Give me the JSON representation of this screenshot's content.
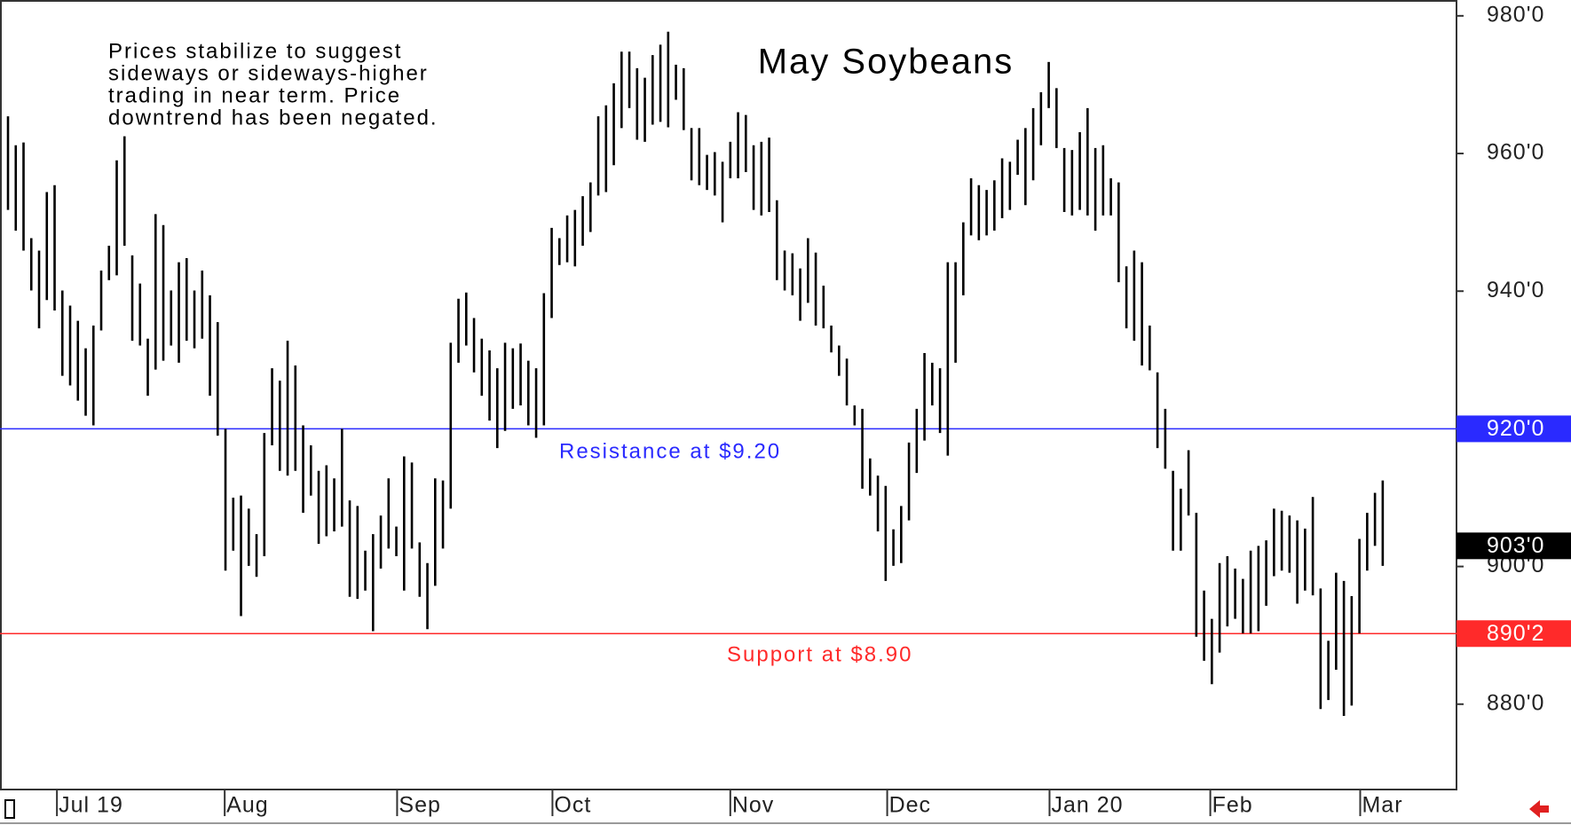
{
  "chart_data": {
    "type": "bar-range",
    "title": "May Soybeans",
    "note_lines": [
      "Prices stabilize to suggest",
      "sideways or sideways-higher",
      "trading in near term. Price",
      "downtrend has been negated."
    ],
    "color": "#000000",
    "xlim": [
      -1.03,
      186.5
    ],
    "xticks": [
      {
        "value": 6.3,
        "label": "Jul 19"
      },
      {
        "value": 27.9,
        "label": "Aug"
      },
      {
        "value": 50.1,
        "label": "Sep"
      },
      {
        "value": 70.1,
        "label": "Oct"
      },
      {
        "value": 93.0,
        "label": "Nov"
      },
      {
        "value": 113.2,
        "label": "Dec"
      },
      {
        "value": 134.1,
        "label": "Jan 20"
      },
      {
        "value": 154.8,
        "label": "Feb"
      },
      {
        "value": 174.1,
        "label": "Mar"
      }
    ],
    "ylim": [
      867.6,
      982.3
    ],
    "yticks": [
      {
        "value": 880,
        "label": "880'0"
      },
      {
        "value": 900,
        "label": "900'0"
      },
      {
        "value": 920,
        "label": "920'0"
      },
      {
        "value": 940,
        "label": "940'0"
      },
      {
        "value": 960,
        "label": "960'0"
      },
      {
        "value": 980,
        "label": "980'0"
      }
    ],
    "levels": [
      {
        "value": 920,
        "label": "Resistance at $9.20",
        "tag": "920'0",
        "color": "#2a2aff"
      },
      {
        "value": 890.25,
        "label": "Support at $8.90",
        "tag": "890'2",
        "color": "#ff2a2a"
      }
    ],
    "last": {
      "value": 903,
      "tag": "903'0",
      "color": "#000000"
    },
    "x": [
      0,
      1,
      2,
      3,
      4,
      5,
      6,
      7,
      8,
      9,
      10,
      11,
      12,
      13,
      14,
      15,
      16,
      17,
      18,
      19,
      20,
      21,
      22,
      23,
      24,
      25,
      26,
      27,
      28,
      29,
      30,
      31,
      32,
      33,
      34,
      35,
      36,
      37,
      38,
      39,
      40,
      41,
      42,
      43,
      44,
      45,
      46,
      47,
      48,
      49,
      50,
      51,
      52,
      53,
      54,
      55,
      56,
      57,
      58,
      59,
      60,
      61,
      62,
      63,
      64,
      65,
      66,
      67,
      68,
      69,
      70,
      71,
      72,
      73,
      74,
      75,
      76,
      77,
      78,
      79,
      80,
      81,
      82,
      83,
      84,
      85,
      86,
      87,
      88,
      89,
      90,
      91,
      92,
      93,
      94,
      95,
      96,
      97,
      98,
      99,
      100,
      101,
      102,
      103,
      104,
      105,
      106,
      107,
      108,
      109,
      110,
      111,
      112,
      113,
      114,
      115,
      116,
      117,
      118,
      119,
      120,
      121,
      122,
      123,
      124,
      125,
      126,
      127,
      128,
      129,
      130,
      131,
      132,
      133,
      134,
      135,
      136,
      137,
      138,
      139,
      140,
      141,
      142,
      143,
      144,
      145,
      146,
      147,
      148,
      149,
      150,
      151,
      152,
      153,
      154,
      155,
      156,
      157,
      158,
      159,
      160,
      161,
      162,
      163,
      164,
      165,
      166,
      167,
      168,
      169,
      170,
      171,
      172,
      173,
      174,
      175,
      176,
      177
    ],
    "high": [
      965.4,
      961.2,
      961.6,
      947.7,
      945.9,
      954.4,
      955.4,
      940.1,
      937.9,
      935.7,
      931.7,
      935.0,
      943.0,
      946.6,
      959.0,
      962.5,
      945.2,
      941.1,
      933.1,
      951.2,
      949.6,
      940.1,
      944.2,
      944.8,
      940.1,
      943.0,
      939.4,
      935.5,
      920.0,
      910.0,
      910.3,
      908.4,
      904.7,
      919.4,
      928.8,
      927.0,
      932.8,
      929.2,
      920.5,
      917.6,
      913.9,
      914.7,
      912.8,
      920.0,
      909.6,
      908.8,
      902.3,
      904.7,
      907.4,
      912.8,
      905.8,
      916.0,
      915.1,
      903.5,
      900.5,
      912.8,
      912.5,
      932.5,
      938.9,
      939.8,
      936.1,
      933.1,
      931.4,
      928.8,
      932.5,
      931.7,
      932.4,
      929.9,
      928.8,
      939.7,
      949.2,
      947.7,
      951.0,
      951.8,
      953.8,
      955.8,
      965.4,
      967.0,
      970.2,
      974.8,
      974.8,
      972.4,
      971.0,
      974.3,
      975.8,
      977.7,
      972.9,
      972.4,
      963.7,
      963.7,
      959.8,
      960.2,
      958.8,
      961.7,
      966.0,
      965.6,
      961.2,
      961.7,
      962.3,
      953.2,
      945.9,
      945.5,
      943.3,
      947.7,
      945.6,
      940.8,
      935.0,
      932.1,
      930.2,
      923.4,
      922.9,
      915.7,
      913.2,
      911.7,
      905.4,
      908.8,
      918.0,
      922.9,
      931.0,
      929.6,
      928.8,
      944.2,
      944.2,
      950.0,
      956.4,
      955.4,
      954.7,
      956.1,
      959.3,
      958.8,
      962.0,
      963.7,
      966.6,
      968.9,
      973.3,
      969.5,
      960.8,
      960.5,
      963.1,
      966.6,
      960.8,
      961.2,
      956.4,
      955.8,
      943.6,
      945.9,
      944.2,
      935.0,
      928.2,
      922.9,
      913.9,
      911.3,
      916.9,
      907.8,
      896.5,
      892.4,
      900.5,
      901.5,
      899.7,
      898.2,
      902.3,
      903.0,
      903.8,
      908.4,
      908.1,
      907.4,
      906.7,
      905.5,
      910.1,
      896.8,
      889.2,
      899.1,
      897.9,
      895.7,
      904.0,
      907.8,
      910.7,
      912.5
    ],
    "low": [
      951.8,
      948.8,
      945.9,
      940.1,
      934.6,
      938.7,
      937.2,
      927.7,
      926.3,
      924.1,
      921.9,
      920.5,
      934.3,
      941.6,
      942.3,
      946.6,
      932.8,
      932.1,
      924.8,
      928.6,
      929.9,
      932.1,
      929.6,
      932.8,
      931.7,
      933.1,
      924.8,
      919.0,
      899.4,
      902.3,
      892.8,
      900.1,
      898.5,
      901.5,
      917.6,
      913.9,
      913.2,
      913.9,
      907.8,
      910.3,
      903.3,
      904.4,
      905.1,
      905.8,
      895.6,
      895.3,
      896.5,
      890.6,
      899.7,
      902.6,
      901.5,
      896.5,
      902.6,
      895.6,
      890.9,
      897.2,
      902.6,
      908.4,
      929.6,
      932.1,
      928.2,
      924.8,
      921.2,
      917.2,
      919.7,
      922.9,
      923.4,
      920.5,
      918.7,
      920.5,
      936.1,
      943.8,
      944.2,
      943.6,
      946.6,
      948.6,
      953.9,
      954.4,
      958.3,
      963.7,
      966.6,
      962.0,
      961.7,
      964.2,
      964.6,
      963.8,
      967.8,
      963.4,
      956.1,
      955.4,
      954.7,
      953.9,
      950.0,
      956.4,
      956.4,
      957.3,
      951.8,
      951.0,
      951.5,
      941.6,
      940.1,
      939.4,
      935.7,
      938.3,
      935.0,
      934.6,
      931.1,
      927.7,
      923.4,
      920.5,
      911.3,
      910.3,
      905.1,
      897.9,
      900.1,
      900.5,
      906.7,
      913.6,
      918.3,
      923.4,
      919.4,
      916.1,
      929.6,
      939.4,
      948.1,
      947.4,
      948.1,
      948.8,
      950.6,
      951.8,
      956.9,
      952.5,
      956.1,
      961.2,
      966.6,
      960.8,
      951.5,
      951.0,
      951.8,
      951.0,
      948.8,
      951.0,
      951.0,
      941.3,
      934.6,
      932.8,
      929.2,
      928.5,
      917.2,
      914.2,
      902.3,
      902.3,
      907.4,
      889.8,
      886.3,
      882.9,
      887.5,
      891.3,
      892.4,
      890.3,
      890.3,
      890.6,
      894.3,
      898.6,
      899.4,
      899.1,
      894.6,
      896.5,
      895.8,
      879.3,
      880.6,
      885.0,
      878.3,
      879.8,
      890.3,
      899.4,
      903.0,
      900.1
    ]
  }
}
